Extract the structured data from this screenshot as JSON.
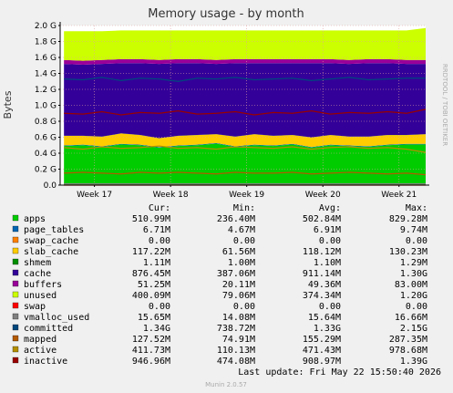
{
  "chart_data": {
    "type": "area",
    "title": "Memory usage - by month",
    "ylabel": "Bytes",
    "watermark": "RRDTOOL / TOBI OETIKER",
    "x": [
      16.6,
      16.85,
      17.1,
      17.35,
      17.6,
      17.85,
      18.1,
      18.35,
      18.6,
      18.85,
      19.1,
      19.35,
      19.6,
      19.85,
      20.1,
      20.35,
      20.6,
      20.85,
      21.1,
      21.35
    ],
    "xlim": [
      16.55,
      21.35
    ],
    "xticks": [
      {
        "value": 17,
        "label": "Week 17"
      },
      {
        "value": 18,
        "label": "Week 18"
      },
      {
        "value": 19,
        "label": "Week 19"
      },
      {
        "value": 20,
        "label": "Week 20"
      },
      {
        "value": 21,
        "label": "Week 21"
      }
    ],
    "ylim": [
      0,
      2.0
    ],
    "yticks": [
      {
        "value": 0,
        "label": "0.0"
      },
      {
        "value": 0.2,
        "label": "0.2 G"
      },
      {
        "value": 0.4,
        "label": "0.4 G"
      },
      {
        "value": 0.6,
        "label": "0.6 G"
      },
      {
        "value": 0.8,
        "label": "0.8 G"
      },
      {
        "value": 1.0,
        "label": "1.0 G"
      },
      {
        "value": 1.2,
        "label": "1.2 G"
      },
      {
        "value": 1.4,
        "label": "1.4 G"
      },
      {
        "value": 1.6,
        "label": "1.6 G"
      },
      {
        "value": 1.8,
        "label": "1.8 G"
      },
      {
        "value": 2.0,
        "label": "2.0 G"
      }
    ],
    "grid": true,
    "legend_header": [
      "Cur:",
      "Min:",
      "Avg:",
      "Max:"
    ],
    "series": [
      {
        "name": "apps",
        "color": "#00cc00",
        "kind": "area",
        "values": [
          0.49,
          0.5,
          0.48,
          0.51,
          0.5,
          0.47,
          0.49,
          0.5,
          0.52,
          0.48,
          0.5,
          0.49,
          0.51,
          0.47,
          0.5,
          0.49,
          0.48,
          0.5,
          0.51,
          0.51
        ],
        "stats": {
          "cur": "510.99M",
          "min": "236.40M",
          "avg": "502.84M",
          "max": "829.28M"
        }
      },
      {
        "name": "page_tables",
        "color": "#0066b3",
        "kind": "area",
        "values": [
          0.007,
          0.007,
          0.007,
          0.007,
          0.007,
          0.007,
          0.007,
          0.007,
          0.007,
          0.007,
          0.007,
          0.007,
          0.007,
          0.007,
          0.007,
          0.007,
          0.007,
          0.007,
          0.007,
          0.007
        ],
        "stats": {
          "cur": "6.71M",
          "min": "4.67M",
          "avg": "6.91M",
          "max": "9.74M"
        }
      },
      {
        "name": "swap_cache",
        "color": "#ff8000",
        "kind": "area",
        "values": [
          0,
          0,
          0,
          0,
          0,
          0,
          0,
          0,
          0,
          0,
          0,
          0,
          0,
          0,
          0,
          0,
          0,
          0,
          0,
          0
        ],
        "stats": {
          "cur": "0.00",
          "min": "0.00",
          "avg": "0.00",
          "max": "0.00"
        }
      },
      {
        "name": "slab_cache",
        "color": "#ffcc00",
        "kind": "area",
        "values": [
          0.12,
          0.11,
          0.12,
          0.13,
          0.12,
          0.11,
          0.12,
          0.12,
          0.11,
          0.12,
          0.13,
          0.12,
          0.11,
          0.12,
          0.12,
          0.11,
          0.12,
          0.12,
          0.11,
          0.12
        ],
        "stats": {
          "cur": "117.22M",
          "min": "61.56M",
          "avg": "118.12M",
          "max": "130.23M"
        }
      },
      {
        "name": "shmem",
        "color": "#008f00",
        "kind": "area",
        "values": [
          0.001,
          0.001,
          0.001,
          0.001,
          0.001,
          0.001,
          0.001,
          0.001,
          0.001,
          0.001,
          0.001,
          0.001,
          0.001,
          0.001,
          0.001,
          0.001,
          0.001,
          0.001,
          0.001,
          0.001
        ],
        "stats": {
          "cur": "1.11M",
          "min": "1.00M",
          "avg": "1.10M",
          "max": "1.29M"
        }
      },
      {
        "name": "cache",
        "color": "#330099",
        "kind": "area",
        "values": [
          0.9,
          0.89,
          0.91,
          0.88,
          0.9,
          0.93,
          0.91,
          0.9,
          0.88,
          0.92,
          0.89,
          0.91,
          0.9,
          0.93,
          0.9,
          0.91,
          0.92,
          0.9,
          0.89,
          0.88
        ],
        "stats": {
          "cur": "876.45M",
          "min": "387.06M",
          "avg": "911.14M",
          "max": "1.30G"
        }
      },
      {
        "name": "buffers",
        "color": "#990099",
        "kind": "area",
        "values": [
          0.05,
          0.05,
          0.05,
          0.05,
          0.05,
          0.05,
          0.05,
          0.05,
          0.05,
          0.05,
          0.05,
          0.05,
          0.05,
          0.05,
          0.05,
          0.05,
          0.05,
          0.05,
          0.05,
          0.05
        ],
        "stats": {
          "cur": "51.25M",
          "min": "20.11M",
          "avg": "49.36M",
          "max": "83.00M"
        }
      },
      {
        "name": "unused",
        "color": "#ccff00",
        "kind": "area",
        "values": [
          0.36,
          0.37,
          0.36,
          0.36,
          0.36,
          0.37,
          0.36,
          0.36,
          0.37,
          0.36,
          0.36,
          0.36,
          0.36,
          0.36,
          0.36,
          0.37,
          0.36,
          0.36,
          0.37,
          0.4
        ],
        "stats": {
          "cur": "400.09M",
          "min": "79.06M",
          "avg": "374.34M",
          "max": "1.20G"
        }
      },
      {
        "name": "swap",
        "color": "#ff0000",
        "kind": "line",
        "values": [
          0,
          0,
          0,
          0,
          0,
          0,
          0,
          0,
          0,
          0,
          0,
          0,
          0,
          0,
          0,
          0,
          0,
          0,
          0,
          0
        ],
        "stats": {
          "cur": "0.00",
          "min": "0.00",
          "avg": "0.00",
          "max": "0.00"
        }
      },
      {
        "name": "vmalloc_used",
        "color": "#808080",
        "kind": "line",
        "values": [
          0.016,
          0.016,
          0.016,
          0.016,
          0.016,
          0.016,
          0.016,
          0.016,
          0.016,
          0.016,
          0.016,
          0.016,
          0.016,
          0.016,
          0.016,
          0.016,
          0.016,
          0.016,
          0.016,
          0.016
        ],
        "stats": {
          "cur": "15.65M",
          "min": "14.08M",
          "avg": "15.64M",
          "max": "16.66M"
        }
      },
      {
        "name": "committed",
        "color": "#00487d",
        "kind": "line",
        "values": [
          1.33,
          1.32,
          1.35,
          1.31,
          1.34,
          1.33,
          1.3,
          1.34,
          1.33,
          1.35,
          1.32,
          1.33,
          1.34,
          1.31,
          1.33,
          1.35,
          1.32,
          1.33,
          1.34,
          1.34
        ],
        "stats": {
          "cur": "1.34G",
          "min": "738.72M",
          "avg": "1.33G",
          "max": "2.15G"
        }
      },
      {
        "name": "mapped",
        "color": "#b35a00",
        "kind": "line",
        "values": [
          0.15,
          0.16,
          0.15,
          0.14,
          0.16,
          0.15,
          0.16,
          0.15,
          0.14,
          0.16,
          0.15,
          0.15,
          0.16,
          0.14,
          0.15,
          0.16,
          0.15,
          0.14,
          0.15,
          0.13
        ],
        "stats": {
          "cur": "127.52M",
          "min": "74.91M",
          "avg": "155.29M",
          "max": "287.35M"
        }
      },
      {
        "name": "active",
        "color": "#b38f00",
        "kind": "line",
        "values": [
          0.47,
          0.45,
          0.48,
          0.46,
          0.47,
          0.49,
          0.46,
          0.47,
          0.45,
          0.48,
          0.47,
          0.46,
          0.48,
          0.45,
          0.47,
          0.48,
          0.46,
          0.47,
          0.45,
          0.41
        ],
        "stats": {
          "cur": "411.73M",
          "min": "110.13M",
          "avg": "471.43M",
          "max": "978.68M"
        }
      },
      {
        "name": "inactive",
        "color": "#990000",
        "kind": "line",
        "values": [
          0.9,
          0.89,
          0.92,
          0.88,
          0.91,
          0.9,
          0.93,
          0.89,
          0.9,
          0.92,
          0.88,
          0.91,
          0.9,
          0.93,
          0.89,
          0.91,
          0.9,
          0.92,
          0.9,
          0.95
        ],
        "stats": {
          "cur": "946.96M",
          "min": "474.08M",
          "avg": "908.97M",
          "max": "1.39G"
        }
      }
    ],
    "last_update": "Last update: Fri May 22 15:50:40 2026",
    "footer": "Munin 2.0.57"
  }
}
